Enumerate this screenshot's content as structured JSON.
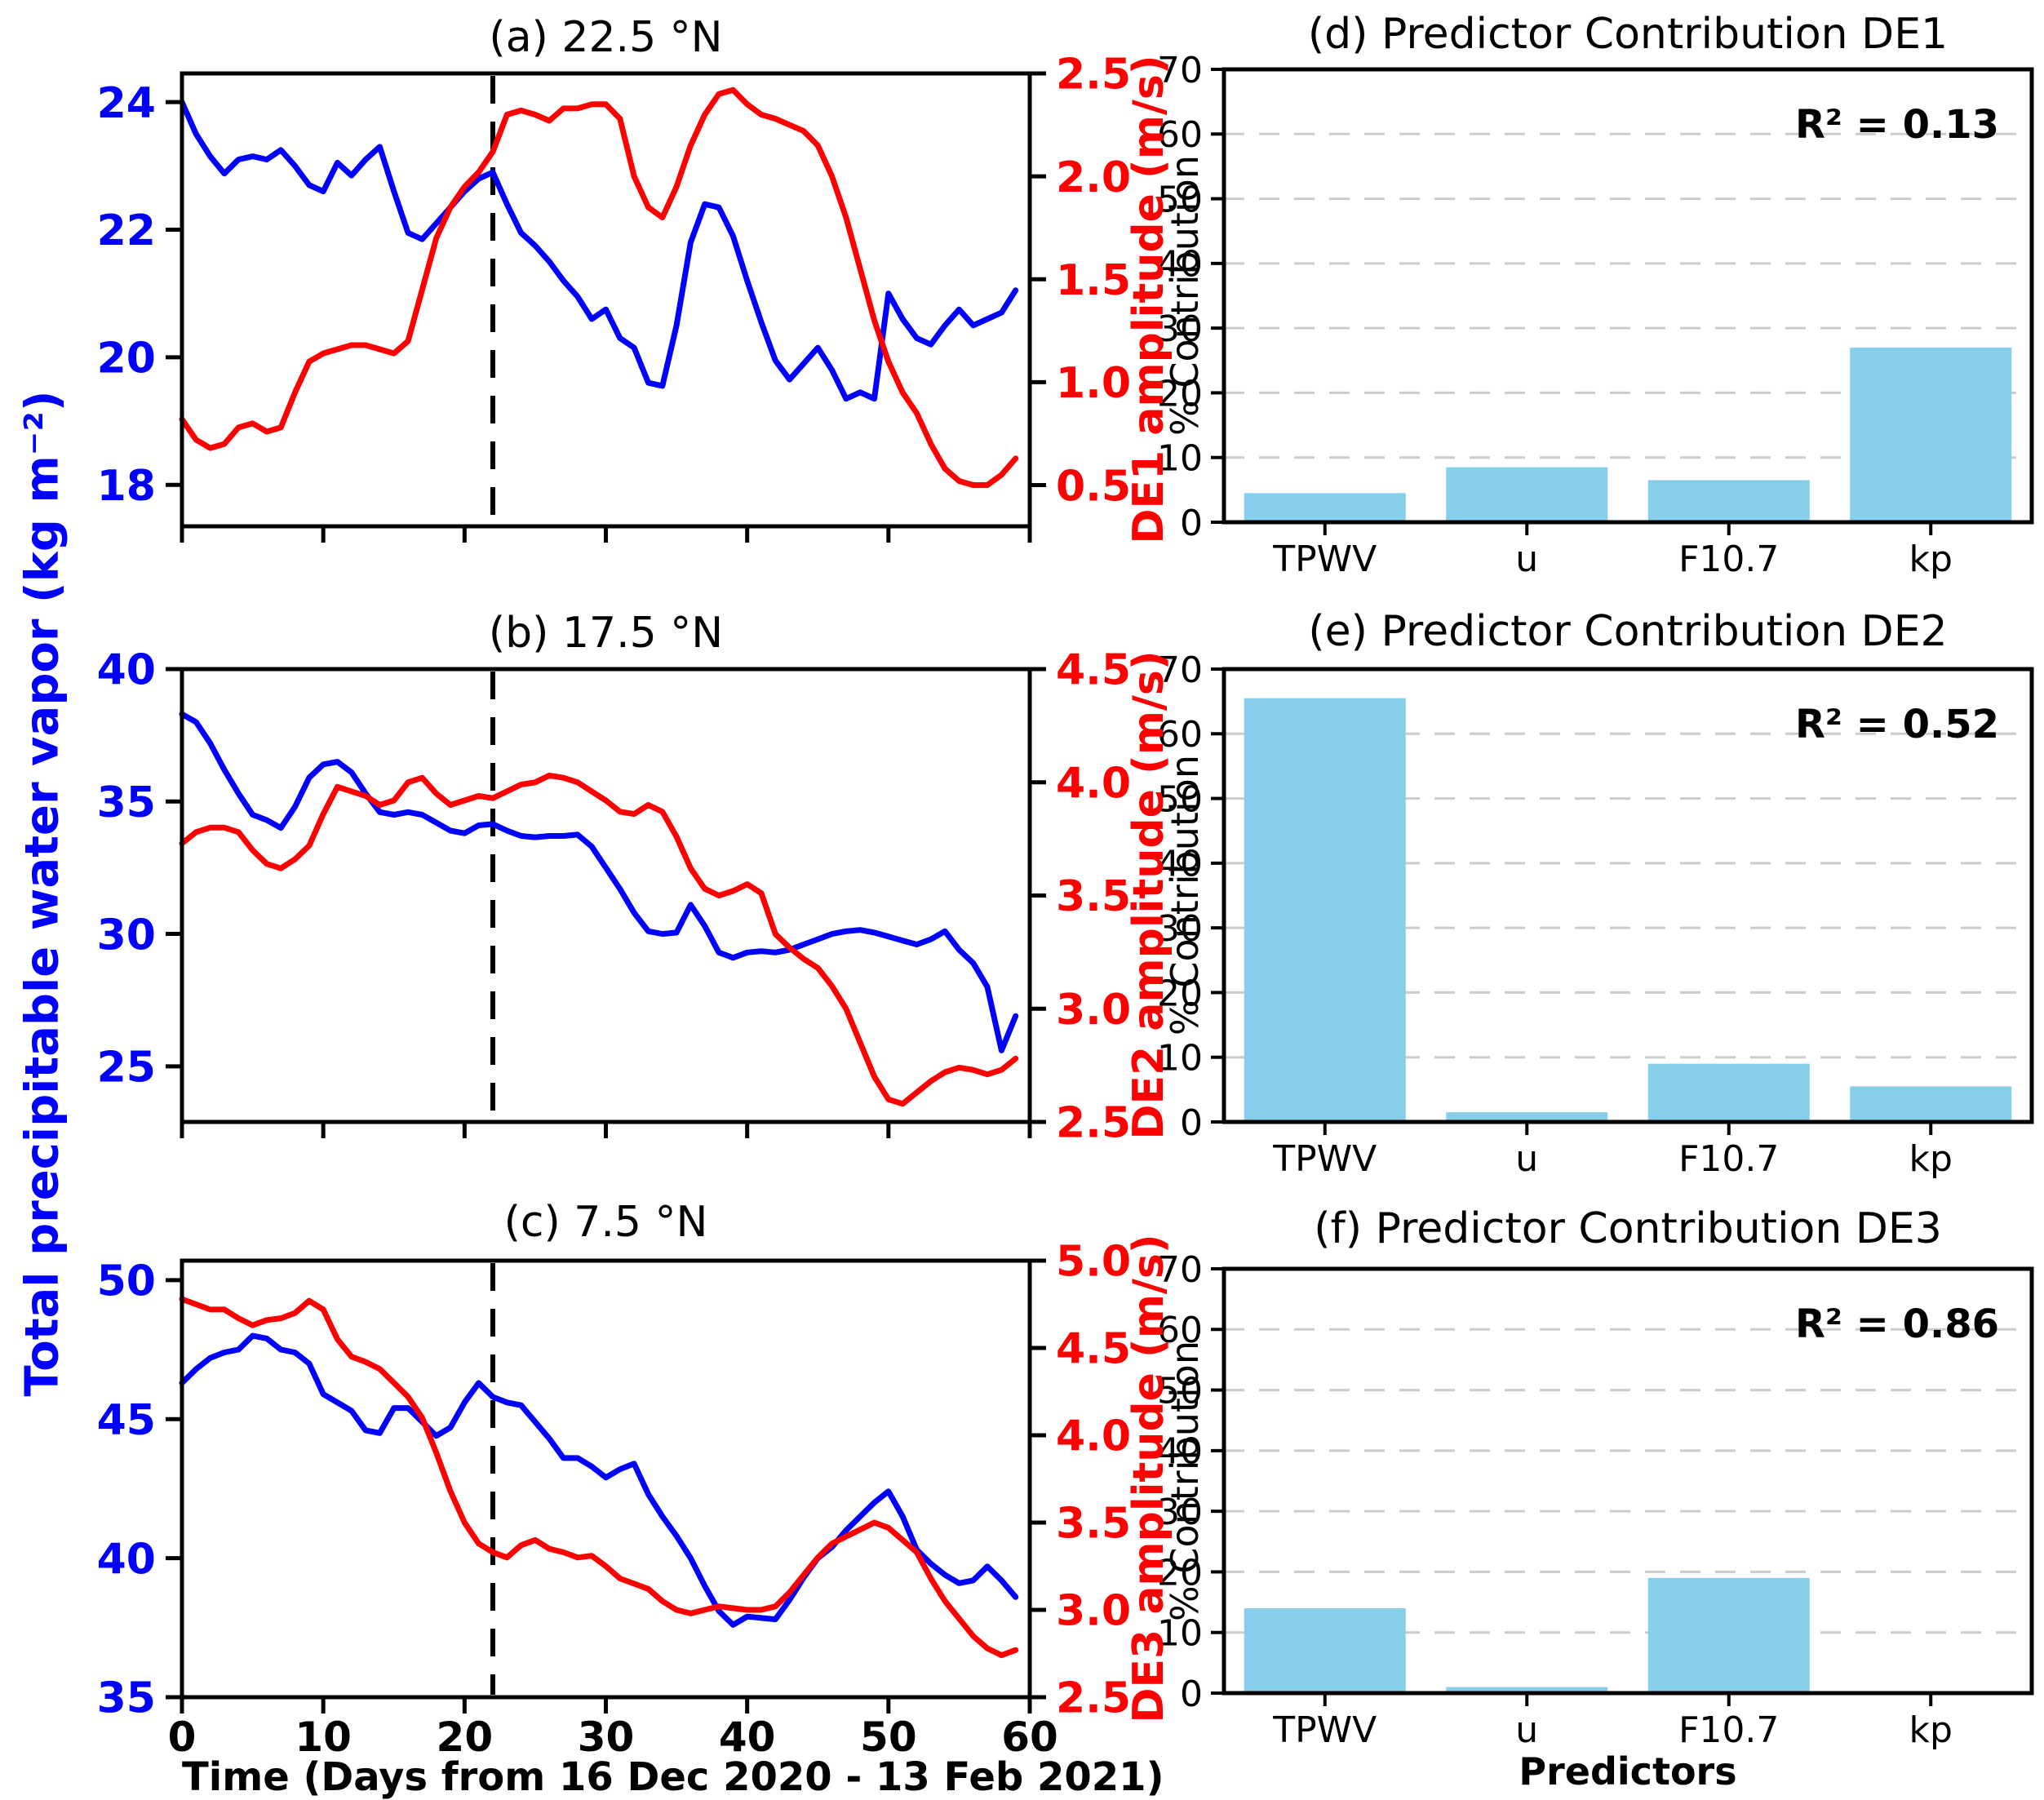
{
  "labels": {
    "shared_ylabel": "Total precipitable water vapor (kg m⁻²)",
    "time_xlabel": "Time (Days from 16 Dec 2020 - 13 Feb 2021)",
    "predictors_xlabel": "Predictors"
  },
  "colors": {
    "blue": "#0000ff",
    "red": "#ff0000",
    "bar": "#87ceeb",
    "grid": "#cccccc",
    "axis": "#000000"
  },
  "days": [
    0,
    1,
    2,
    3,
    4,
    5,
    6,
    7,
    8,
    9,
    10,
    11,
    12,
    13,
    14,
    15,
    16,
    17,
    18,
    19,
    20,
    21,
    22,
    23,
    24,
    25,
    26,
    27,
    28,
    29,
    30,
    31,
    32,
    33,
    34,
    35,
    36,
    37,
    38,
    39,
    40,
    41,
    42,
    43,
    44,
    45,
    46,
    47,
    48,
    49,
    50,
    51,
    52,
    53,
    54,
    55,
    56,
    57,
    58,
    59
  ],
  "chart_data": [
    {
      "id": "a",
      "type": "line",
      "title": "(a) 22.5 °N",
      "xlim": [
        0,
        60
      ],
      "xticks": [
        0,
        10,
        20,
        30,
        40,
        50,
        60
      ],
      "xtick_labels": [],
      "dashed_line_x": 22,
      "left_axis": {
        "ticks": [
          18,
          20,
          22,
          24
        ],
        "tick_labels": [
          "18",
          "20",
          "22",
          "24"
        ],
        "lim": [
          17.35,
          24.45
        ]
      },
      "right_axis": {
        "label": "DE1 amplitude (m/s)",
        "ticks": [
          0.5,
          1.0,
          1.5,
          2.0,
          2.5
        ],
        "tick_labels": [
          "0.5",
          "1.0",
          "1.5",
          "2.0",
          "2.5"
        ],
        "lim": [
          0.3,
          2.5
        ]
      },
      "series": [
        {
          "name": "TPWV",
          "axis": "left",
          "color": "#0000ff",
          "values": [
            24.0,
            23.5,
            23.15,
            22.88,
            23.1,
            23.15,
            23.1,
            23.25,
            23.0,
            22.7,
            22.6,
            23.05,
            22.85,
            23.1,
            23.3,
            22.6,
            21.95,
            21.85,
            22.1,
            22.35,
            22.6,
            22.8,
            22.9,
            22.4,
            21.95,
            21.75,
            21.5,
            21.2,
            20.95,
            20.6,
            20.75,
            20.3,
            20.15,
            19.6,
            19.55,
            20.5,
            21.8,
            22.4,
            22.35,
            21.9,
            21.2,
            20.55,
            19.95,
            19.65,
            19.9,
            20.15,
            19.8,
            19.35,
            19.45,
            19.35,
            21.0,
            20.6,
            20.3,
            20.2,
            20.5,
            20.75,
            20.5,
            20.6,
            20.7,
            21.05
          ]
        },
        {
          "name": "DE1",
          "axis": "right",
          "color": "#ff0000",
          "values": [
            0.82,
            0.72,
            0.68,
            0.7,
            0.78,
            0.8,
            0.76,
            0.78,
            0.95,
            1.1,
            1.14,
            1.16,
            1.18,
            1.18,
            1.16,
            1.14,
            1.2,
            1.45,
            1.7,
            1.85,
            1.95,
            2.02,
            2.12,
            2.3,
            2.32,
            2.3,
            2.27,
            2.33,
            2.33,
            2.35,
            2.35,
            2.28,
            2.0,
            1.85,
            1.8,
            1.95,
            2.15,
            2.3,
            2.4,
            2.42,
            2.35,
            2.3,
            2.28,
            2.25,
            2.22,
            2.15,
            2.0,
            1.8,
            1.55,
            1.3,
            1.1,
            0.95,
            0.85,
            0.7,
            0.58,
            0.52,
            0.5,
            0.5,
            0.55,
            0.63
          ]
        }
      ]
    },
    {
      "id": "b",
      "type": "line",
      "title": "(b) 17.5 °N",
      "xlim": [
        0,
        60
      ],
      "xticks": [
        0,
        10,
        20,
        30,
        40,
        50,
        60
      ],
      "xtick_labels": [],
      "dashed_line_x": 22,
      "left_axis": {
        "ticks": [
          25,
          30,
          35,
          40
        ],
        "tick_labels": [
          "25",
          "30",
          "35",
          "40"
        ],
        "lim": [
          22.9,
          40
        ]
      },
      "right_axis": {
        "label": "DE2 amplitude (m/s)",
        "ticks": [
          2.5,
          3.0,
          3.5,
          4.0,
          4.5
        ],
        "tick_labels": [
          "2.5",
          "3.0",
          "3.5",
          "4.0",
          "4.5"
        ],
        "lim": [
          2.5,
          4.5
        ]
      },
      "series": [
        {
          "name": "TPWV",
          "axis": "left",
          "color": "#0000ff",
          "values": [
            38.3,
            38.0,
            37.2,
            36.2,
            35.3,
            34.5,
            34.3,
            34.0,
            34.8,
            35.9,
            36.4,
            36.5,
            36.1,
            35.3,
            34.6,
            34.5,
            34.6,
            34.5,
            34.2,
            33.9,
            33.8,
            34.1,
            34.15,
            33.9,
            33.7,
            33.65,
            33.7,
            33.7,
            33.75,
            33.3,
            32.5,
            31.7,
            30.8,
            30.1,
            30.0,
            30.05,
            31.1,
            30.3,
            29.3,
            29.1,
            29.3,
            29.35,
            29.3,
            29.4,
            29.6,
            29.8,
            30.0,
            30.1,
            30.15,
            30.05,
            29.9,
            29.75,
            29.6,
            29.8,
            30.1,
            29.4,
            28.9,
            28.0,
            25.6,
            26.9
          ]
        },
        {
          "name": "DE2",
          "axis": "right",
          "color": "#ff0000",
          "values": [
            3.73,
            3.78,
            3.8,
            3.8,
            3.78,
            3.7,
            3.64,
            3.62,
            3.66,
            3.72,
            3.86,
            3.98,
            3.96,
            3.94,
            3.9,
            3.92,
            4.0,
            4.02,
            3.95,
            3.9,
            3.92,
            3.94,
            3.93,
            3.96,
            3.99,
            4.0,
            4.03,
            4.02,
            4.0,
            3.96,
            3.92,
            3.87,
            3.86,
            3.9,
            3.87,
            3.76,
            3.62,
            3.53,
            3.5,
            3.52,
            3.55,
            3.51,
            3.33,
            3.27,
            3.22,
            3.18,
            3.1,
            3.0,
            2.85,
            2.7,
            2.6,
            2.58,
            2.63,
            2.68,
            2.72,
            2.74,
            2.73,
            2.71,
            2.73,
            2.78
          ]
        }
      ]
    },
    {
      "id": "c",
      "type": "line",
      "title": "(c) 7.5 °N",
      "xlabel": "Time (Days from 16 Dec 2020 - 13 Feb 2021)",
      "xlim": [
        0,
        60
      ],
      "xticks": [
        0,
        10,
        20,
        30,
        40,
        50,
        60
      ],
      "xtick_labels": [
        "0",
        "10",
        "20",
        "30",
        "40",
        "50",
        "60"
      ],
      "dashed_line_x": 22,
      "left_axis": {
        "ticks": [
          35,
          40,
          45,
          50
        ],
        "tick_labels": [
          "35",
          "40",
          "45",
          "50"
        ],
        "lim": [
          35,
          50.7
        ]
      },
      "right_axis": {
        "label": "DE3 amplitude (m/s)",
        "ticks": [
          2.5,
          3.0,
          3.5,
          4.0,
          4.5,
          5.0
        ],
        "tick_labels": [
          "2.5",
          "3.0",
          "3.5",
          "4.0",
          "4.5",
          "5.0"
        ],
        "lim": [
          2.5,
          5.0
        ]
      },
      "series": [
        {
          "name": "TPWV",
          "axis": "left",
          "color": "#0000ff",
          "values": [
            46.3,
            46.8,
            47.2,
            47.4,
            47.5,
            48.0,
            47.9,
            47.5,
            47.4,
            47.0,
            45.9,
            45.6,
            45.3,
            44.6,
            44.5,
            45.4,
            45.4,
            44.9,
            44.4,
            44.7,
            45.6,
            46.3,
            45.8,
            45.6,
            45.5,
            44.9,
            44.3,
            43.6,
            43.6,
            43.3,
            42.9,
            43.2,
            43.4,
            42.3,
            41.5,
            40.8,
            40.0,
            39.0,
            38.1,
            37.6,
            37.9,
            37.85,
            37.8,
            38.5,
            39.3,
            40.0,
            40.4,
            41.0,
            41.5,
            42.0,
            42.4,
            41.5,
            40.3,
            39.8,
            39.4,
            39.1,
            39.2,
            39.7,
            39.2,
            38.6
          ]
        },
        {
          "name": "DE3",
          "axis": "right",
          "color": "#ff0000",
          "values": [
            4.78,
            4.75,
            4.72,
            4.72,
            4.67,
            4.63,
            4.66,
            4.67,
            4.7,
            4.77,
            4.72,
            4.55,
            4.45,
            4.42,
            4.38,
            4.3,
            4.22,
            4.1,
            3.9,
            3.68,
            3.5,
            3.38,
            3.33,
            3.3,
            3.37,
            3.4,
            3.35,
            3.33,
            3.3,
            3.31,
            3.25,
            3.18,
            3.15,
            3.12,
            3.05,
            3.0,
            2.98,
            3.0,
            3.02,
            3.01,
            3.0,
            3.0,
            3.02,
            3.1,
            3.2,
            3.3,
            3.38,
            3.42,
            3.46,
            3.5,
            3.47,
            3.4,
            3.33,
            3.18,
            3.05,
            2.95,
            2.85,
            2.78,
            2.74,
            2.77
          ]
        }
      ]
    },
    {
      "id": "d",
      "type": "bar",
      "title": "(d) Predictor Contribution DE1",
      "annotation": "R² = 0.13",
      "ylabel": "% Contribution",
      "categories": [
        "TPWV",
        "u",
        "F10.7",
        "kp"
      ],
      "values": [
        4.5,
        8.5,
        6.5,
        27.0
      ],
      "ylim": [
        0,
        70
      ],
      "yticks": [
        0,
        10,
        20,
        30,
        40,
        50,
        60,
        70
      ],
      "ytick_labels": [
        "0",
        "10",
        "20",
        "30",
        "40",
        "50",
        "60",
        "70"
      ],
      "grid": true,
      "bar_color": "#87ceeb"
    },
    {
      "id": "e",
      "type": "bar",
      "title": "(e) Predictor Contribution DE2",
      "annotation": "R² = 0.52",
      "ylabel": "% Contribution",
      "categories": [
        "TPWV",
        "u",
        "F10.7",
        "kp"
      ],
      "values": [
        65.5,
        1.5,
        9.0,
        5.5
      ],
      "ylim": [
        0,
        70
      ],
      "yticks": [
        0,
        10,
        20,
        30,
        40,
        50,
        60,
        70
      ],
      "ytick_labels": [
        "0",
        "10",
        "20",
        "30",
        "40",
        "50",
        "60",
        "70"
      ],
      "grid": true,
      "bar_color": "#87ceeb"
    },
    {
      "id": "f",
      "type": "bar",
      "title": "(f) Predictor Contribution DE3",
      "annotation": "R² = 0.86",
      "xlabel": "Predictors",
      "ylabel": "% Contribution",
      "categories": [
        "TPWV",
        "u",
        "F10.7",
        "kp"
      ],
      "values": [
        14.0,
        1.0,
        19.0,
        0.3
      ],
      "ylim": [
        0,
        70
      ],
      "yticks": [
        0,
        10,
        20,
        30,
        40,
        50,
        60,
        70
      ],
      "ytick_labels": [
        "0",
        "10",
        "20",
        "30",
        "40",
        "50",
        "60",
        "70"
      ],
      "grid": true,
      "bar_color": "#87ceeb"
    }
  ]
}
